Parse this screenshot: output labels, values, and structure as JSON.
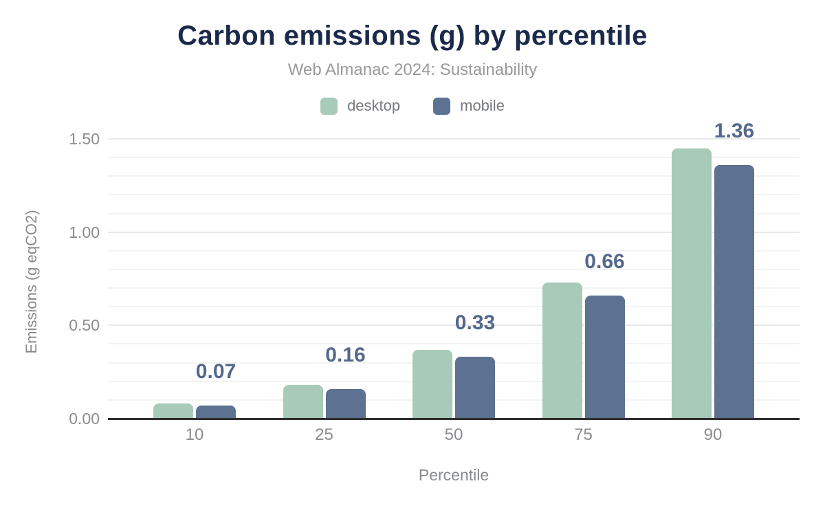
{
  "chart_data": {
    "type": "bar",
    "title": "Carbon emissions (g) by percentile",
    "subtitle": "Web Almanac 2024: Sustainability",
    "xlabel": "Percentile",
    "ylabel": "Emissions (g eqCO2)",
    "categories": [
      "10",
      "25",
      "50",
      "75",
      "90"
    ],
    "series": [
      {
        "name": "desktop",
        "color": "#a8cab8",
        "values": [
          0.08,
          0.18,
          0.37,
          0.73,
          1.45
        ]
      },
      {
        "name": "mobile",
        "color": "#5d7190",
        "values": [
          0.07,
          0.16,
          0.33,
          0.66,
          1.36
        ]
      }
    ],
    "bar_labels": {
      "labeled_series": "mobile",
      "values": [
        "0.07",
        "0.16",
        "0.33",
        "0.66",
        "1.36"
      ]
    },
    "y_ticks": [
      {
        "value": 0.0,
        "label": "0.00"
      },
      {
        "value": 0.5,
        "label": "0.50"
      },
      {
        "value": 1.0,
        "label": "1.00"
      },
      {
        "value": 1.5,
        "label": "1.50"
      }
    ],
    "ylim": [
      0,
      1.5
    ],
    "grid_step": 0.1,
    "grid": true,
    "legend_position": "top",
    "colors": {
      "title": "#1b2a4a",
      "subtitle": "#98999b",
      "axis_text": "#898b8e",
      "data_label": "#54688c",
      "gridline_minor": "#f3f3f3",
      "gridline_major": "#e9e9e9",
      "axis_line": "#2e2e2e",
      "background": "#ffffff"
    }
  }
}
